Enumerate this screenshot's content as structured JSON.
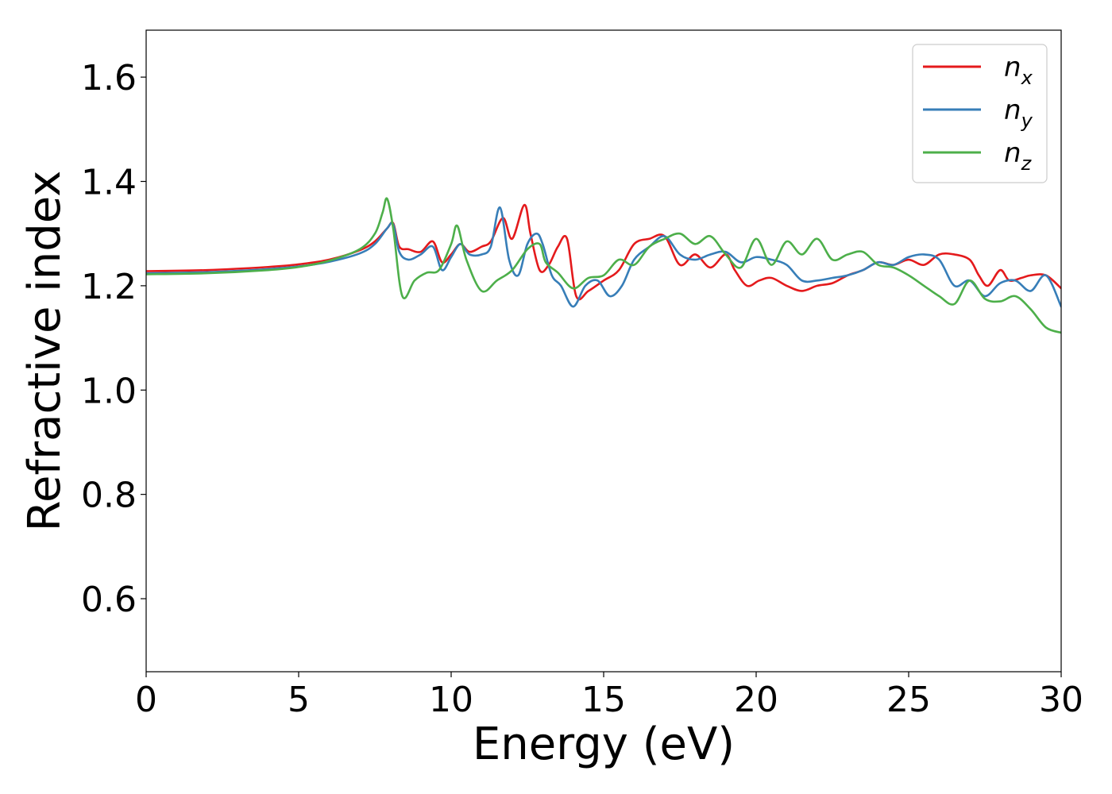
{
  "chart_data": {
    "type": "line",
    "title": "",
    "xlabel": "Energy (eV)",
    "ylabel": "Refractive index",
    "xlim": [
      0,
      30
    ],
    "ylim": [
      0.46,
      1.69
    ],
    "xticks": [
      0,
      5,
      10,
      15,
      20,
      25,
      30
    ],
    "xtick_labels": [
      "0",
      "5",
      "10",
      "15",
      "20",
      "25",
      "30"
    ],
    "yticks": [
      0.6,
      0.8,
      1.0,
      1.2,
      1.4,
      1.6
    ],
    "ytick_labels": [
      "0.6",
      "0.8",
      "1.0",
      "1.2",
      "1.4",
      "1.6"
    ],
    "grid": false,
    "legend": {
      "position": "top-right",
      "entries": [
        {
          "label": "n",
          "subscript": "x",
          "color": "#e41a1c"
        },
        {
          "label": "n",
          "subscript": "y",
          "color": "#377eb8"
        },
        {
          "label": "n",
          "subscript": "z",
          "color": "#4daf4a"
        }
      ]
    },
    "series": [
      {
        "name": "n_x",
        "color": "#e41a1c",
        "x": [
          0,
          2,
          4,
          5,
          6,
          7,
          7.5,
          7.9,
          8.1,
          8.3,
          8.6,
          9.0,
          9.4,
          9.7,
          10.0,
          10.3,
          10.6,
          11.0,
          11.3,
          11.7,
          12.0,
          12.4,
          12.6,
          12.9,
          13.2,
          13.5,
          13.8,
          14.1,
          14.5,
          15.0,
          15.5,
          16.0,
          16.5,
          17.0,
          17.5,
          18.0,
          18.5,
          19.0,
          19.3,
          19.7,
          20.1,
          20.5,
          21.0,
          21.5,
          22.0,
          22.5,
          23.0,
          23.5,
          24.0,
          24.5,
          25.0,
          25.5,
          26.0,
          26.5,
          27.0,
          27.3,
          27.6,
          28.0,
          28.3,
          28.7,
          29.0,
          29.5,
          30.0
        ],
        "y": [
          1.228,
          1.23,
          1.236,
          1.241,
          1.25,
          1.268,
          1.285,
          1.31,
          1.32,
          1.275,
          1.27,
          1.265,
          1.285,
          1.245,
          1.26,
          1.28,
          1.265,
          1.275,
          1.285,
          1.33,
          1.29,
          1.355,
          1.3,
          1.23,
          1.24,
          1.275,
          1.29,
          1.18,
          1.19,
          1.21,
          1.23,
          1.28,
          1.29,
          1.295,
          1.24,
          1.26,
          1.235,
          1.26,
          1.23,
          1.2,
          1.21,
          1.215,
          1.2,
          1.19,
          1.2,
          1.205,
          1.22,
          1.23,
          1.245,
          1.24,
          1.25,
          1.24,
          1.26,
          1.26,
          1.25,
          1.22,
          1.2,
          1.23,
          1.21,
          1.215,
          1.22,
          1.22,
          1.195
        ]
      },
      {
        "name": "n_y",
        "color": "#377eb8",
        "x": [
          0,
          2,
          4,
          5,
          6,
          7,
          7.5,
          7.9,
          8.1,
          8.3,
          8.6,
          9.0,
          9.4,
          9.7,
          10.0,
          10.3,
          10.6,
          11.0,
          11.3,
          11.6,
          11.9,
          12.2,
          12.5,
          12.8,
          13.0,
          13.3,
          13.6,
          14.0,
          14.4,
          14.8,
          15.2,
          15.6,
          16.0,
          16.5,
          17.0,
          17.5,
          18.0,
          18.5,
          19.0,
          19.5,
          20.0,
          20.5,
          21.0,
          21.5,
          22.0,
          22.5,
          23.0,
          23.5,
          24.0,
          24.5,
          25.0,
          25.5,
          26.0,
          26.5,
          27.0,
          27.5,
          28.0,
          28.5,
          29.0,
          29.5,
          30.0
        ],
        "y": [
          1.224,
          1.226,
          1.232,
          1.237,
          1.246,
          1.262,
          1.28,
          1.31,
          1.318,
          1.265,
          1.25,
          1.26,
          1.275,
          1.23,
          1.255,
          1.28,
          1.26,
          1.26,
          1.275,
          1.35,
          1.25,
          1.22,
          1.28,
          1.3,
          1.28,
          1.22,
          1.2,
          1.16,
          1.2,
          1.21,
          1.18,
          1.2,
          1.25,
          1.275,
          1.295,
          1.26,
          1.25,
          1.26,
          1.265,
          1.245,
          1.255,
          1.25,
          1.24,
          1.21,
          1.21,
          1.215,
          1.22,
          1.23,
          1.245,
          1.24,
          1.255,
          1.26,
          1.25,
          1.2,
          1.21,
          1.18,
          1.205,
          1.21,
          1.19,
          1.22,
          1.16
        ]
      },
      {
        "name": "n_z",
        "color": "#4daf4a",
        "x": [
          0,
          2,
          4,
          5,
          6,
          7,
          7.5,
          7.75,
          7.9,
          8.1,
          8.4,
          8.8,
          9.2,
          9.6,
          10.0,
          10.2,
          10.5,
          11.0,
          11.5,
          12.0,
          12.5,
          12.9,
          13.1,
          13.5,
          14.0,
          14.5,
          15.0,
          15.5,
          16.0,
          16.5,
          17.0,
          17.5,
          18.0,
          18.5,
          19.0,
          19.5,
          20.0,
          20.5,
          21.0,
          21.5,
          22.0,
          22.5,
          23.0,
          23.5,
          24.0,
          24.5,
          25.0,
          25.5,
          26.0,
          26.5,
          27.0,
          27.5,
          28.0,
          28.5,
          29.0,
          29.5,
          30.0
        ],
        "y": [
          1.222,
          1.224,
          1.23,
          1.236,
          1.248,
          1.27,
          1.3,
          1.34,
          1.367,
          1.31,
          1.18,
          1.21,
          1.225,
          1.23,
          1.28,
          1.315,
          1.25,
          1.19,
          1.21,
          1.23,
          1.27,
          1.28,
          1.245,
          1.225,
          1.195,
          1.215,
          1.22,
          1.25,
          1.24,
          1.275,
          1.29,
          1.3,
          1.28,
          1.295,
          1.26,
          1.235,
          1.29,
          1.24,
          1.285,
          1.26,
          1.29,
          1.25,
          1.26,
          1.265,
          1.24,
          1.235,
          1.22,
          1.2,
          1.18,
          1.165,
          1.21,
          1.175,
          1.17,
          1.18,
          1.155,
          1.12,
          1.11
        ]
      }
    ]
  }
}
